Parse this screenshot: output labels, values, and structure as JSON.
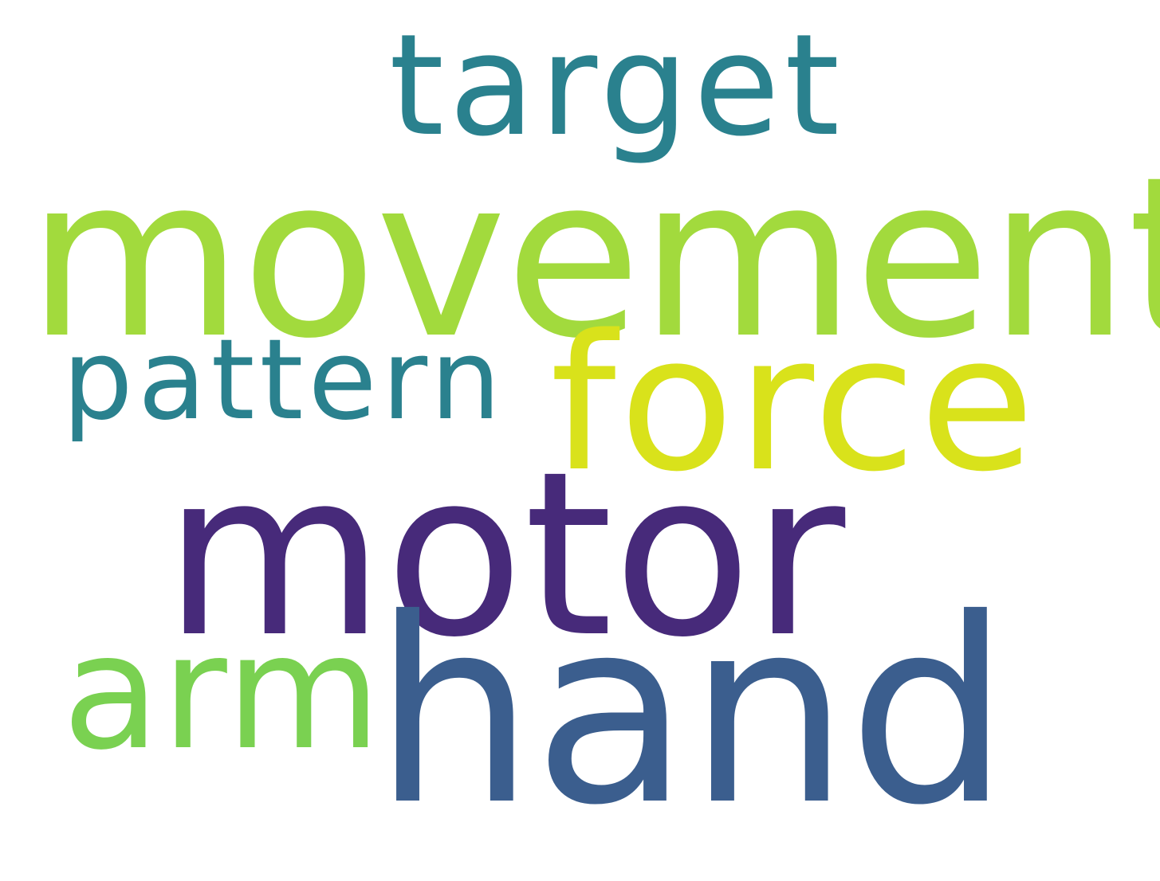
{
  "word_cloud": {
    "words": [
      {
        "text": "target",
        "color": "#2a818e"
      },
      {
        "text": "movement",
        "color": "#a2da3d"
      },
      {
        "text": "pattern",
        "color": "#2a818e"
      },
      {
        "text": "force",
        "color": "#d9e21b"
      },
      {
        "text": "motor",
        "color": "#472a7a"
      },
      {
        "text": "arm",
        "color": "#7ad151"
      },
      {
        "text": "hand",
        "color": "#3b5e8e"
      }
    ]
  }
}
